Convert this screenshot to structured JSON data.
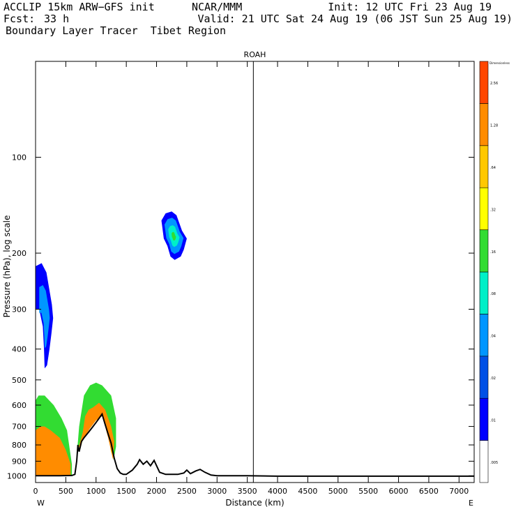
{
  "header": {
    "model": "ACCLIP 15km ARW−GFS init",
    "org": "NCAR/MMM",
    "init": "Init: 12 UTC Fri 23 Aug 19",
    "fcst_label": "Fcst:",
    "fcst_value": "33 h",
    "valid": "Valid: 21 UTC Sat 24 Aug 19 (06 JST Sun 25 Aug 19)",
    "product": "Boundary Layer Tracer  Tibet Region"
  },
  "chart_data": {
    "type": "heatmap",
    "title": "ROAH",
    "xlabel": "Distance (km)",
    "ylabel": "Pressure (hPa), log scale",
    "xlim": [
      0,
      7250
    ],
    "ylim": [
      1050,
      50
    ],
    "y_scale": "log",
    "x_ticks": [
      0,
      500,
      1000,
      1500,
      2000,
      2500,
      3000,
      3500,
      4000,
      4500,
      5000,
      5500,
      6000,
      6500,
      7000
    ],
    "y_ticks": [
      100,
      200,
      300,
      400,
      500,
      600,
      700,
      800,
      900,
      1000
    ],
    "x_end_labels": {
      "left": "W",
      "right": "E"
    },
    "marker_line_km": 3600,
    "colorbar": {
      "levels": [
        ".005",
        ".01",
        ".02",
        ".04",
        ".08",
        ".16",
        ".32",
        ".64",
        "1.28",
        "2.56"
      ],
      "top_label": "Dimensionless",
      "colors": [
        "#ffffff",
        "#0000ff",
        "#0050e6",
        "#0096ff",
        "#00f0c8",
        "#32dc32",
        "#ffff00",
        "#ffc800",
        "#ff8c00",
        "#ff4600"
      ]
    },
    "terrain": [
      [
        0,
        1000
      ],
      [
        400,
        1000
      ],
      [
        600,
        998
      ],
      [
        650,
        990
      ],
      [
        680,
        900
      ],
      [
        700,
        800
      ],
      [
        720,
        840
      ],
      [
        760,
        780
      ],
      [
        800,
        760
      ],
      [
        850,
        740
      ],
      [
        900,
        720
      ],
      [
        950,
        700
      ],
      [
        1000,
        680
      ],
      [
        1050,
        660
      ],
      [
        1100,
        640
      ],
      [
        1150,
        690
      ],
      [
        1200,
        740
      ],
      [
        1250,
        790
      ],
      [
        1300,
        880
      ],
      [
        1350,
        950
      ],
      [
        1400,
        980
      ],
      [
        1450,
        990
      ],
      [
        1500,
        990
      ],
      [
        1600,
        960
      ],
      [
        1680,
        920
      ],
      [
        1720,
        890
      ],
      [
        1780,
        920
      ],
      [
        1840,
        900
      ],
      [
        1900,
        930
      ],
      [
        1960,
        895
      ],
      [
        2050,
        975
      ],
      [
        2150,
        990
      ],
      [
        2350,
        990
      ],
      [
        2450,
        980
      ],
      [
        2500,
        960
      ],
      [
        2560,
        985
      ],
      [
        2650,
        965
      ],
      [
        2720,
        955
      ],
      [
        2800,
        975
      ],
      [
        2900,
        995
      ],
      [
        3000,
        1000
      ],
      [
        3500,
        1000
      ],
      [
        4000,
        1003
      ],
      [
        7250,
        1003
      ]
    ],
    "tracer_regions": [
      {
        "level": ".64+",
        "polygon": [
          [
            0,
            1000
          ],
          [
            580,
            1000
          ],
          [
            580,
            920
          ],
          [
            500,
            830
          ],
          [
            400,
            760
          ],
          [
            250,
            720
          ],
          [
            150,
            700
          ],
          [
            80,
            700
          ],
          [
            0,
            720
          ]
        ]
      },
      {
        "level": ".64+",
        "polygon": [
          [
            700,
            830
          ],
          [
            780,
            730
          ],
          [
            820,
            650
          ],
          [
            880,
            620
          ],
          [
            950,
            610
          ],
          [
            1050,
            590
          ],
          [
            1150,
            620
          ],
          [
            1250,
            700
          ],
          [
            1300,
            780
          ],
          [
            1280,
            890
          ],
          [
            1200,
            760
          ],
          [
            1150,
            700
          ],
          [
            1100,
            650
          ],
          [
            1000,
            670
          ],
          [
            900,
            710
          ],
          [
            800,
            760
          ]
        ]
      },
      {
        "level": ".16-.64",
        "polygon": [
          [
            0,
            1000
          ],
          [
            600,
            1000
          ],
          [
            600,
            920
          ],
          [
            520,
            720
          ],
          [
            430,
            660
          ],
          [
            300,
            600
          ],
          [
            150,
            560
          ],
          [
            50,
            560
          ],
          [
            0,
            580
          ]
        ]
      },
      {
        "level": ".16-.64",
        "polygon": [
          [
            680,
            870
          ],
          [
            720,
            700
          ],
          [
            800,
            560
          ],
          [
            900,
            520
          ],
          [
            1000,
            510
          ],
          [
            1100,
            520
          ],
          [
            1250,
            560
          ],
          [
            1330,
            660
          ],
          [
            1330,
            810
          ],
          [
            1290,
            890
          ],
          [
            1220,
            700
          ],
          [
            1050,
            620
          ],
          [
            900,
            650
          ],
          [
            780,
            740
          ]
        ]
      },
      {
        "level": "blue",
        "polygon": [
          [
            0,
            220
          ],
          [
            100,
            215
          ],
          [
            180,
            230
          ],
          [
            270,
            290
          ],
          [
            290,
            320
          ],
          [
            260,
            360
          ],
          [
            230,
            400
          ],
          [
            190,
            450
          ],
          [
            150,
            460
          ],
          [
            140,
            400
          ],
          [
            120,
            340
          ],
          [
            60,
            300
          ],
          [
            0,
            300
          ]
        ]
      },
      {
        "level": "blue",
        "polygon": [
          [
            2080,
            158
          ],
          [
            2150,
            150
          ],
          [
            2250,
            148
          ],
          [
            2330,
            152
          ],
          [
            2420,
            170
          ],
          [
            2500,
            180
          ],
          [
            2450,
            195
          ],
          [
            2400,
            205
          ],
          [
            2300,
            210
          ],
          [
            2230,
            205
          ],
          [
            2180,
            190
          ],
          [
            2120,
            180
          ]
        ]
      }
    ]
  }
}
